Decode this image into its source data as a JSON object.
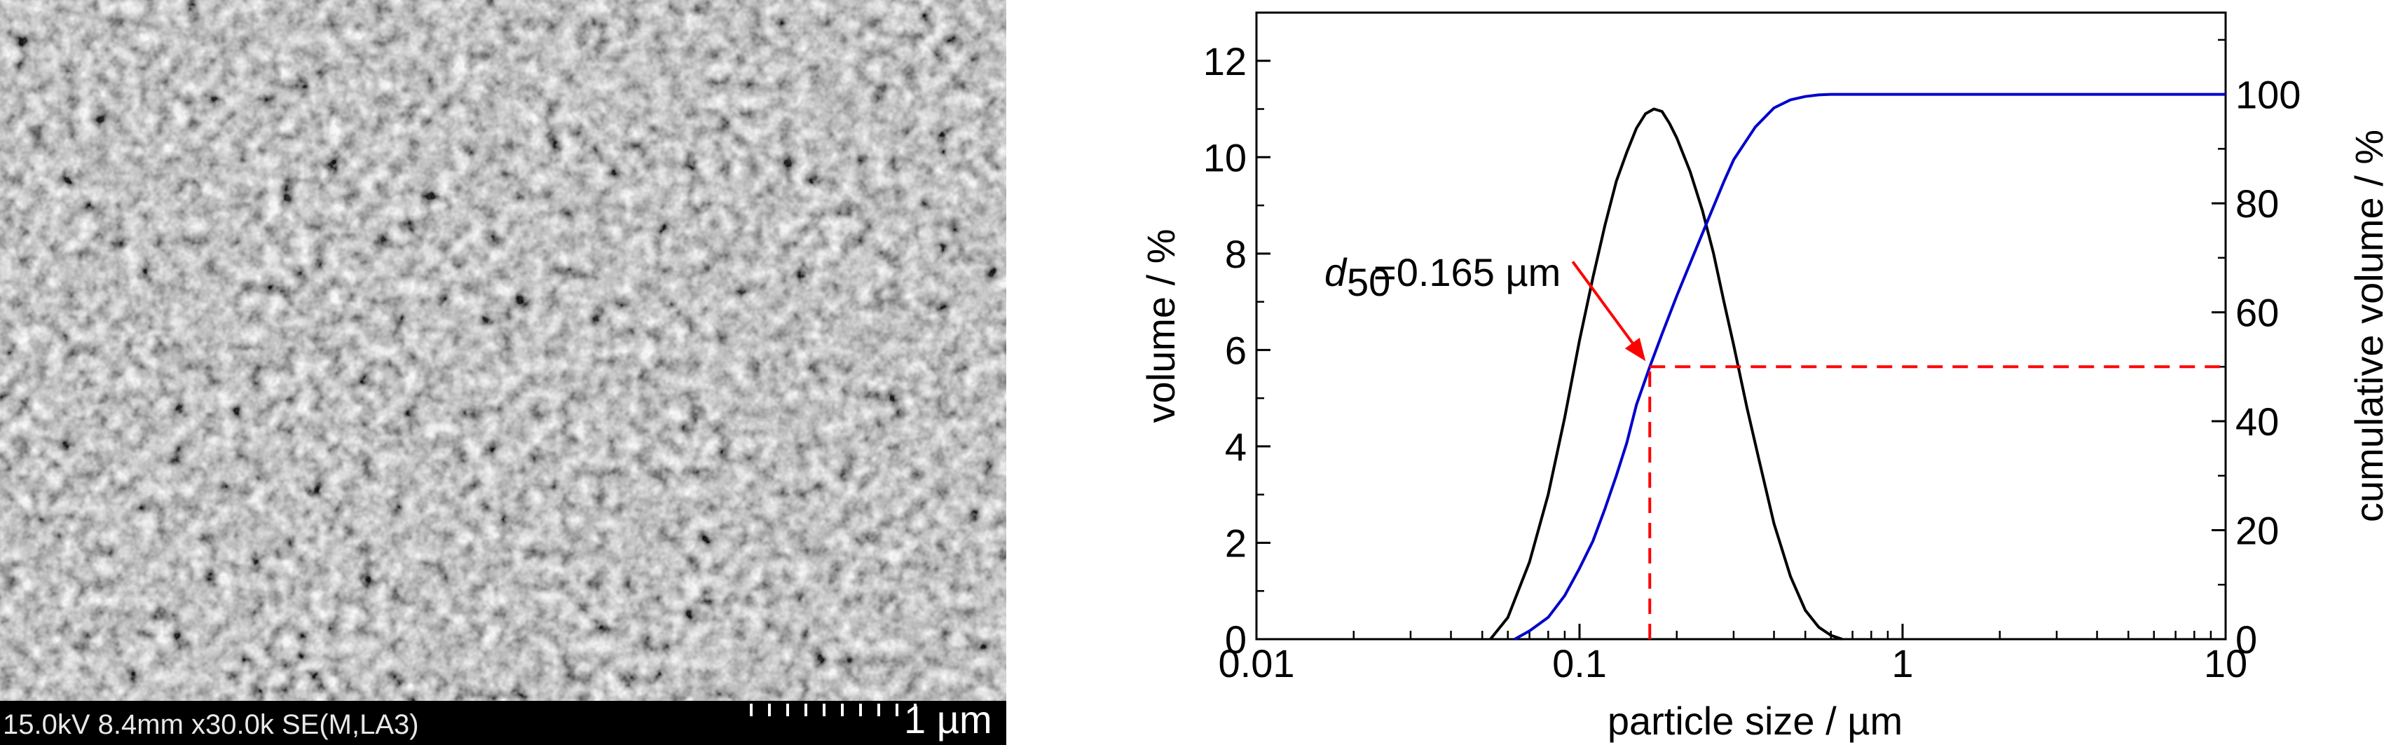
{
  "sem": {
    "info": "15.0kV 8.4mm x30.0k SE(M,LA3)",
    "scale_label": "1 µm"
  },
  "chart_data": {
    "type": "line",
    "xlabel": "particle size / µm",
    "ylabel_left": "volume / %",
    "ylabel_right": "cumulative volume / %",
    "x_scale": "log",
    "xlim": [
      0.01,
      10
    ],
    "ylim_left": [
      0,
      13
    ],
    "ylim_right": [
      0,
      115
    ],
    "x_ticks": [
      "0.01",
      "0.1",
      "1",
      "10"
    ],
    "y_ticks_left": [
      "0",
      "2",
      "4",
      "6",
      "8",
      "10",
      "12"
    ],
    "y_ticks_right": [
      "0",
      "20",
      "40",
      "60",
      "80",
      "100"
    ],
    "grid": false,
    "series": [
      {
        "axis": "left",
        "color": "#000000",
        "x": [
          0.053,
          0.06,
          0.07,
          0.08,
          0.09,
          0.1,
          0.11,
          0.12,
          0.13,
          0.14,
          0.15,
          0.16,
          0.17,
          0.18,
          0.19,
          0.2,
          0.22,
          0.24,
          0.26,
          0.28,
          0.3,
          0.33,
          0.36,
          0.4,
          0.45,
          0.5,
          0.55,
          0.6,
          0.65
        ],
        "y": [
          0.0,
          0.45,
          1.6,
          3.0,
          4.6,
          6.2,
          7.5,
          8.6,
          9.5,
          10.1,
          10.6,
          10.9,
          11.0,
          10.95,
          10.7,
          10.4,
          9.7,
          8.9,
          8.0,
          7.0,
          6.1,
          4.8,
          3.7,
          2.4,
          1.3,
          0.6,
          0.25,
          0.08,
          0.0
        ]
      },
      {
        "axis": "right",
        "color": "#0000cc",
        "x": [
          0.063,
          0.07,
          0.08,
          0.09,
          0.1,
          0.11,
          0.12,
          0.13,
          0.14,
          0.15,
          0.165,
          0.18,
          0.2,
          0.22,
          0.25,
          0.28,
          0.3,
          0.35,
          0.4,
          0.45,
          0.5,
          0.55,
          0.6,
          0.7,
          1,
          10
        ],
        "y": [
          0,
          1.5,
          4,
          8,
          13,
          18,
          24,
          30,
          36,
          43,
          50,
          56,
          63,
          69,
          77,
          84,
          88,
          94,
          97.5,
          99,
          99.6,
          99.9,
          100,
          100,
          100,
          100
        ]
      }
    ],
    "annotation": {
      "text_d": "d",
      "text_sub": "50",
      "text_value": "=0.165 µm",
      "x": 0.165,
      "y_right": 50,
      "color": "#ff0000"
    }
  }
}
